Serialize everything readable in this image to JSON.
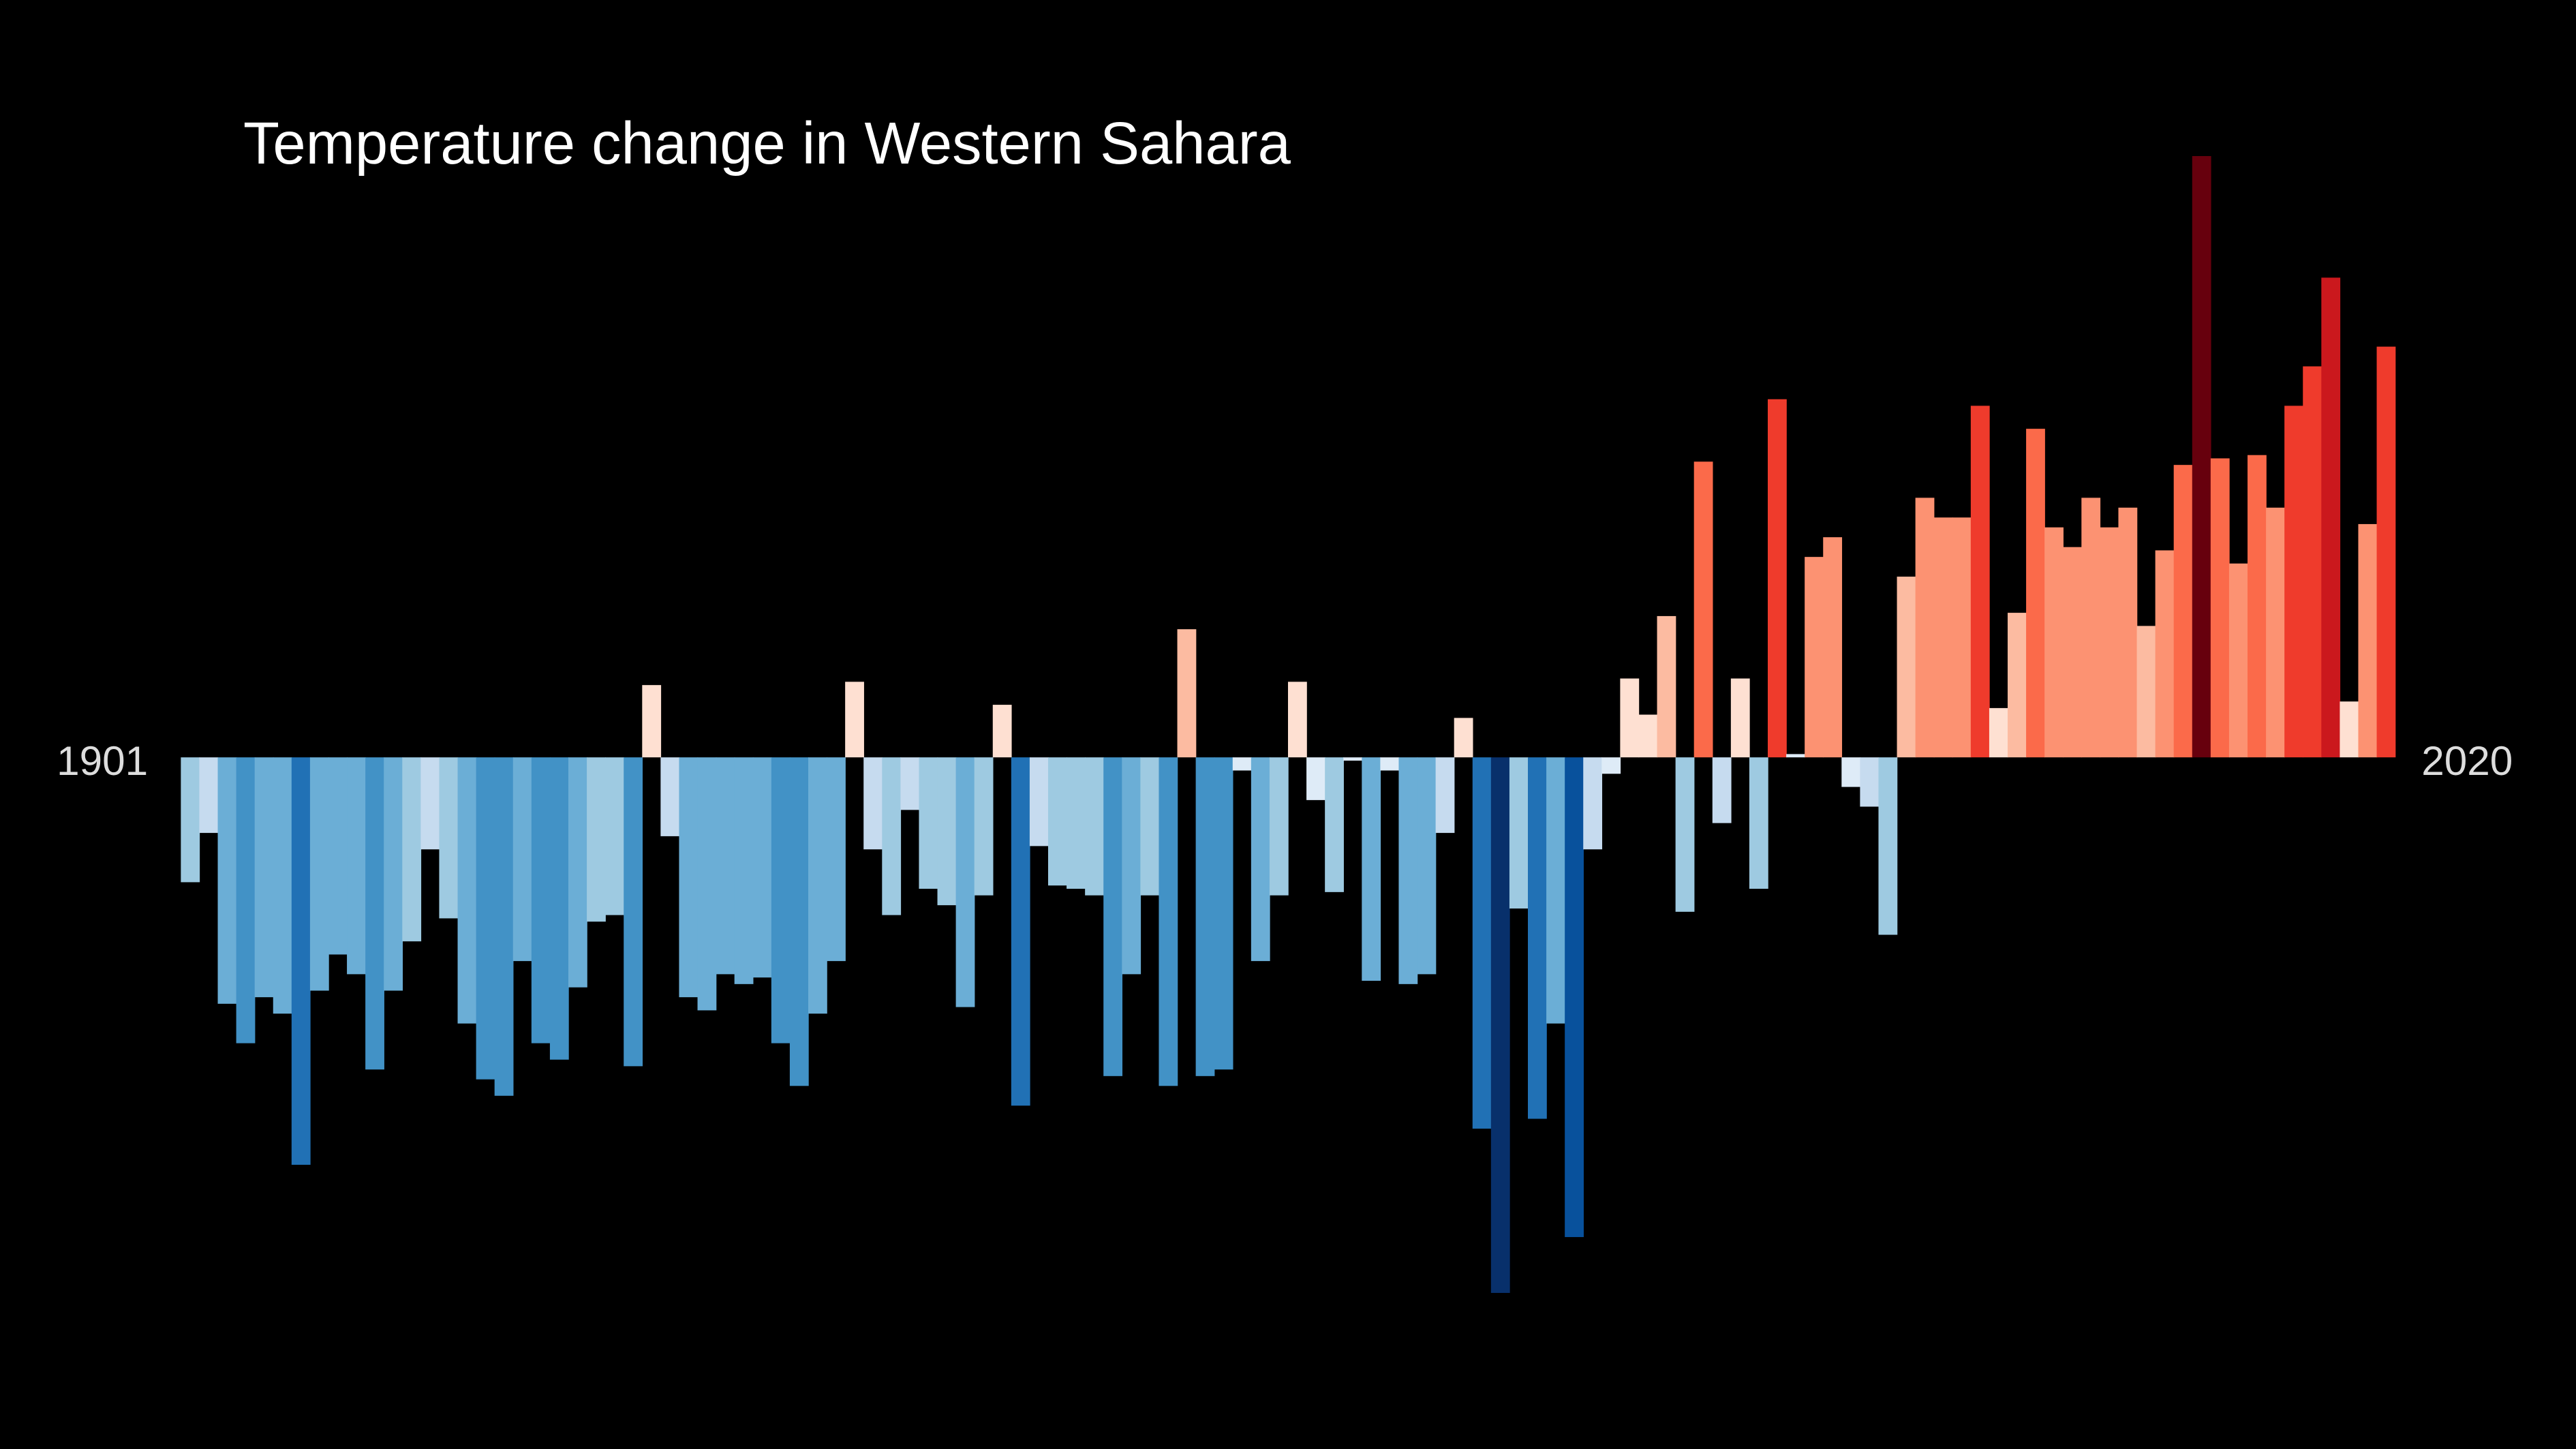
{
  "chart_data": {
    "type": "bar",
    "title": "Temperature change in Western Sahara",
    "categories": [
      "1901",
      null,
      null,
      null,
      null,
      null,
      null,
      null,
      null,
      null,
      null,
      null,
      null,
      null,
      null,
      null,
      null,
      null,
      null,
      null,
      null,
      null,
      null,
      null,
      null,
      null,
      null,
      null,
      null,
      null,
      null,
      null,
      null,
      null,
      null,
      null,
      null,
      null,
      null,
      null,
      null,
      null,
      null,
      null,
      null,
      null,
      null,
      null,
      null,
      null,
      null,
      null,
      null,
      null,
      null,
      null,
      null,
      null,
      null,
      null,
      null,
      null,
      null,
      null,
      null,
      null,
      null,
      null,
      null,
      null,
      null,
      null,
      null,
      null,
      null,
      null,
      null,
      null,
      null,
      null,
      null,
      null,
      null,
      null,
      null,
      null,
      null,
      null,
      null,
      null,
      null,
      null,
      null,
      null,
      null,
      null,
      null,
      null,
      null,
      null,
      null,
      null,
      null,
      null,
      null,
      null,
      null,
      null,
      null,
      null,
      null,
      null,
      null,
      null,
      null,
      null,
      null,
      null,
      null,
      "2020"
    ],
    "values": [
      -0.38,
      -0.23,
      -0.75,
      -0.87,
      -0.73,
      -0.78,
      -1.24,
      -0.71,
      -0.6,
      -0.66,
      -0.95,
      -0.71,
      -0.56,
      -0.28,
      -0.49,
      -0.81,
      -0.98,
      -1.03,
      -0.62,
      -0.87,
      -0.92,
      -0.7,
      -0.5,
      -0.48,
      -0.94,
      0.22,
      -0.24,
      -0.73,
      -0.77,
      -0.66,
      -0.69,
      -0.67,
      -0.87,
      -1.0,
      -0.78,
      -0.62,
      0.23,
      -0.28,
      -0.48,
      -0.16,
      -0.4,
      -0.45,
      -0.76,
      -0.42,
      0.16,
      -1.06,
      -0.27,
      -0.39,
      -0.4,
      -0.42,
      -0.97,
      -0.66,
      -0.42,
      -1.0,
      0.39,
      -0.97,
      -0.95,
      -0.04,
      -0.62,
      -0.42,
      0.23,
      -0.13,
      -0.41,
      -0.01,
      -0.68,
      -0.04,
      -0.69,
      -0.66,
      -0.23,
      0.12,
      -1.13,
      -1.63,
      -0.46,
      -1.1,
      -0.81,
      -1.46,
      -0.28,
      -0.05,
      0.24,
      0.13,
      0.43,
      -0.47,
      0.9,
      -0.2,
      0.24,
      -0.4,
      1.09,
      0.01,
      0.61,
      0.67,
      -0.09,
      -0.15,
      -0.54,
      0.55,
      0.79,
      0.73,
      0.73,
      1.07,
      0.15,
      0.44,
      1.0,
      0.7,
      0.64,
      0.79,
      0.7,
      0.76,
      0.4,
      0.63,
      0.89,
      1.83,
      0.91,
      0.59,
      0.92,
      0.76,
      1.07,
      1.19,
      1.46,
      0.17,
      0.71,
      1.25
    ],
    "ylim": [
      -1.75,
      1.95
    ],
    "colormap": [
      "#08306b",
      "#08519c",
      "#2171b5",
      "#4292c6",
      "#6baed6",
      "#9ecae1",
      "#c6dbef",
      "#deebf7",
      "#fee0d2",
      "#fcbba1",
      "#fc9272",
      "#fb6a4a",
      "#ef3b2c",
      "#cb181d",
      "#a50f15",
      "#67000d"
    ],
    "background": "#000000"
  }
}
